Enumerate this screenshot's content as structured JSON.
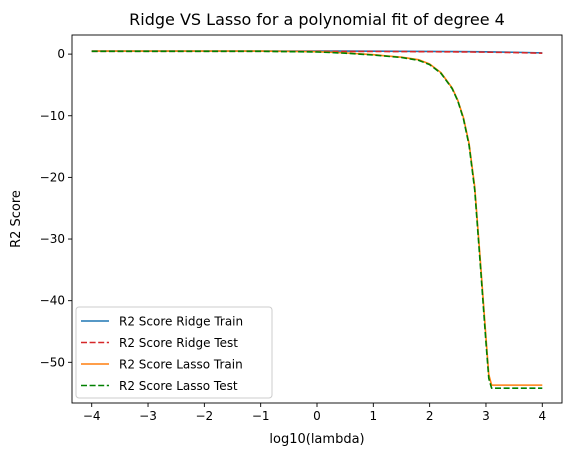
{
  "chart_data": {
    "type": "line",
    "title": "Ridge VS Lasso for a polynomial fit of degree 4",
    "xlabel": "log10(lambda)",
    "ylabel": "R2 Score",
    "xlim": [
      -4.35,
      4.35
    ],
    "ylim": [
      -56.6,
      3.1
    ],
    "xticks": [
      -4,
      -3,
      -2,
      -1,
      0,
      1,
      2,
      3,
      4
    ],
    "yticks": [
      0,
      -10,
      -20,
      -30,
      -40,
      -50
    ],
    "grid": false,
    "legend_position": "lower-left",
    "series": [
      {
        "name": "R2 Score Ridge Train",
        "color": "#1f77b4",
        "style": "solid",
        "x": [
          -4,
          -3,
          -2,
          -1,
          0,
          0.5,
          1,
          1.5,
          2,
          2.5,
          3,
          3.5,
          4
        ],
        "y": [
          0.5,
          0.5,
          0.5,
          0.5,
          0.5,
          0.49,
          0.48,
          0.46,
          0.44,
          0.41,
          0.37,
          0.3,
          0.2
        ]
      },
      {
        "name": "R2 Score Ridge Test",
        "color": "#d62728",
        "style": "dashed",
        "x": [
          -4,
          -3,
          -2,
          -1,
          0,
          0.5,
          1,
          1.5,
          2,
          2.5,
          3,
          3.5,
          4
        ],
        "y": [
          0.45,
          0.45,
          0.45,
          0.45,
          0.45,
          0.44,
          0.43,
          0.41,
          0.39,
          0.36,
          0.32,
          0.25,
          0.15
        ]
      },
      {
        "name": "R2 Score Lasso Train",
        "color": "#ff7f0e",
        "style": "solid",
        "x": [
          -4,
          -3,
          -2,
          -1,
          0,
          0.5,
          1,
          1.5,
          1.8,
          2.0,
          2.2,
          2.4,
          2.5,
          2.6,
          2.7,
          2.8,
          2.9,
          3.0,
          3.05,
          3.1,
          3.5,
          4.0
        ],
        "y": [
          0.5,
          0.5,
          0.5,
          0.5,
          0.4,
          0.2,
          -0.1,
          -0.5,
          -0.9,
          -1.6,
          -3.0,
          -5.5,
          -7.5,
          -10.3,
          -14.5,
          -21.5,
          -33.5,
          -46.0,
          -52.0,
          -53.7,
          -53.7,
          -53.7
        ]
      },
      {
        "name": "R2 Score Lasso Test",
        "color": "#008000",
        "style": "dashed",
        "x": [
          -4,
          -3,
          -2,
          -1,
          0,
          0.5,
          1,
          1.5,
          1.8,
          2.0,
          2.2,
          2.4,
          2.5,
          2.6,
          2.7,
          2.8,
          2.9,
          3.0,
          3.05,
          3.1,
          3.5,
          4.0
        ],
        "y": [
          0.45,
          0.45,
          0.45,
          0.45,
          0.35,
          0.15,
          -0.15,
          -0.55,
          -1.0,
          -1.7,
          -3.1,
          -5.6,
          -7.6,
          -10.5,
          -14.8,
          -22.0,
          -34.2,
          -46.8,
          -52.6,
          -54.2,
          -54.2,
          -54.2
        ]
      }
    ]
  }
}
